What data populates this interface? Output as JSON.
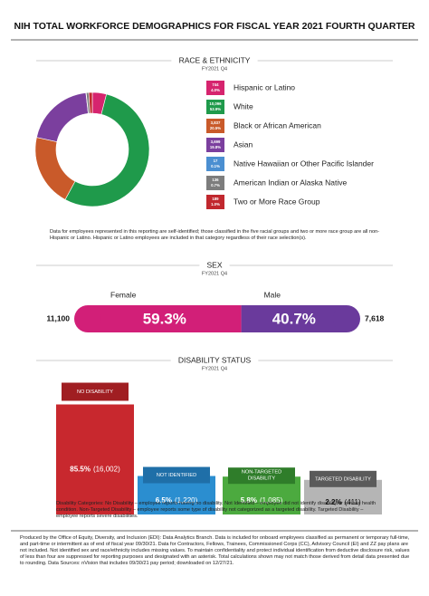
{
  "title": "NIH TOTAL WORKFORCE DEMOGRAPHICS FOR FISCAL YEAR 2021 FOURTH QUARTER",
  "chart_data": [
    {
      "type": "donut",
      "title": "RACE & ETHNICITY",
      "subtitle": "FY2021 Q4",
      "categories": [
        "Hispanic or Latino",
        "White",
        "Black or African American",
        "Asian",
        "Native Hawaiian or Other Pacific Islander",
        "American Indian or Alaska Native",
        "Two or More Race Group"
      ],
      "values": [
        4.0,
        53.9,
        20.5,
        19.8,
        0.1,
        0.7,
        1.0
      ],
      "value_labels": [
        "4.0%",
        "53.9%",
        "20.5%",
        "19.8%",
        "0.1%",
        "0.7%",
        "1.0%"
      ],
      "count_labels": [
        "744",
        "10,096",
        "3,837",
        "3,699",
        "17",
        "136",
        "189"
      ],
      "colors": [
        "#d6246e",
        "#1f9a4b",
        "#c95a2a",
        "#7b3f9e",
        "#4b8fd1",
        "#7d7d7d",
        "#c1282e"
      ],
      "note": "Data for employees represented in this reporting are self-identified; those classified in the five racial groups and two or more race group are all non-Hispanic or Latino. Hispanic or Latino employees are included in that category regardless of their race selection(s)."
    },
    {
      "type": "stacked-bar",
      "title": "SEX",
      "subtitle": "FY2021 Q4",
      "categories": [
        "Female",
        "Male"
      ],
      "values": [
        59.3,
        40.7
      ],
      "value_labels": [
        "59.3%",
        "40.7%"
      ],
      "count_labels": [
        "11,100",
        "7,618"
      ],
      "colors": [
        "#d21f78",
        "#6a3a9c"
      ]
    },
    {
      "type": "bar",
      "title": "DISABILITY STATUS",
      "subtitle": "FY2021 Q4",
      "categories": [
        "NO DISABILITY",
        "NOT IDENTIFIED",
        "NON-TARGETED DISABILITY",
        "TARGETED DISABILITY"
      ],
      "values": [
        85.5,
        6.5,
        5.8,
        2.2
      ],
      "value_labels": [
        "85.5%",
        "6.5%",
        "5.8%",
        "2.2%"
      ],
      "count_labels": [
        "(16,002)",
        "(1,220)",
        "(1,085)",
        "(411)"
      ],
      "colors": [
        "#c8282e",
        "#2b8ed0",
        "#4caa3f",
        "#b5b5b5"
      ],
      "header_colors": [
        "#a01e22",
        "#1f6fa8",
        "#2f7d2a",
        "#5a5a5a"
      ],
      "note": "Disability Categories: No Disability – employee reports having no disability. Not Identified – employee did not identify disability or serious health condition. Non-Targeted Disability – employee reports some type of disability not categorized as a targeted disability. Targeted Disability – employee reports severe disabilities."
    }
  ],
  "footnote": "Produced by the Office of Equity, Diversity, and Inclusion (EDI): Data Analytics Branch. Data is included for onboard employees classified as permanent or temporary full-time, and part-time or intermittent as of end of fiscal year 09/30/21. Data for Contractors, Fellows, Trainees, Commissioned Corps (CC), Advisory Council (EI) and ZZ pay plans are not included. Not identified sex and race/ethnicity includes missing values. To maintain confidentiality and protect individual identification from deductive disclosure risk, values of less than four are suppressed for reporting purposes and designated with an asterisk. Total calculations shown may not match those derived from detail data presented due to rounding. Data Sources: nVision that includes 09/30/21 pay period; downloaded on 12/27/21."
}
